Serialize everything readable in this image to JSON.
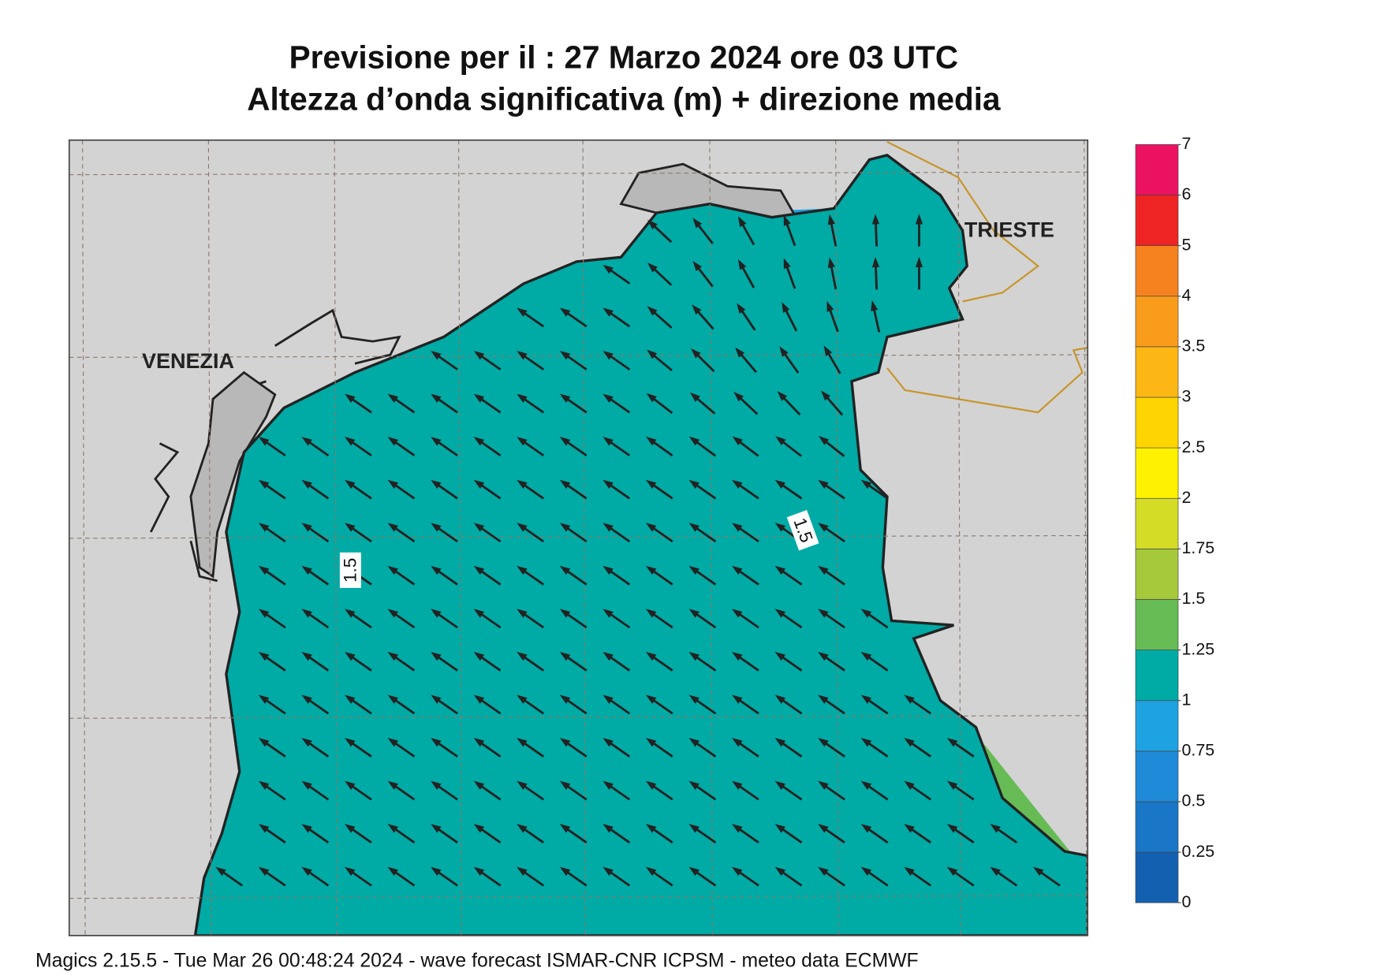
{
  "header": {
    "title": "Previsione per il  :  27   Marzo   2024   ore 03 UTC",
    "subtitle": "Altezza d’onda significativa (m) + direzione media"
  },
  "map": {
    "places": [
      "VENEZIA",
      "TRIESTE"
    ],
    "contour_labels": [
      "1.5",
      "1.5"
    ]
  },
  "colorbar": {
    "levels": [
      0,
      0.25,
      0.5,
      0.75,
      1,
      1.25,
      1.5,
      1.75,
      2,
      2.5,
      3,
      3.5,
      4,
      5,
      6,
      7
    ],
    "colors": [
      "#1460b0",
      "#1a76c6",
      "#1e8ad8",
      "#1fa2e2",
      "#00aaa5",
      "#66bb55",
      "#a6c93c",
      "#d4dc26",
      "#fff200",
      "#ffd500",
      "#fdb714",
      "#f99c1c",
      "#f5821f",
      "#ee2424",
      "#ec1262"
    ]
  },
  "footer": "Magics 2.15.5 - Tue Mar 26 00:48:24 2024 - wave forecast  ISMAR-CNR  ICPSM - meteo data   ECMWF"
}
